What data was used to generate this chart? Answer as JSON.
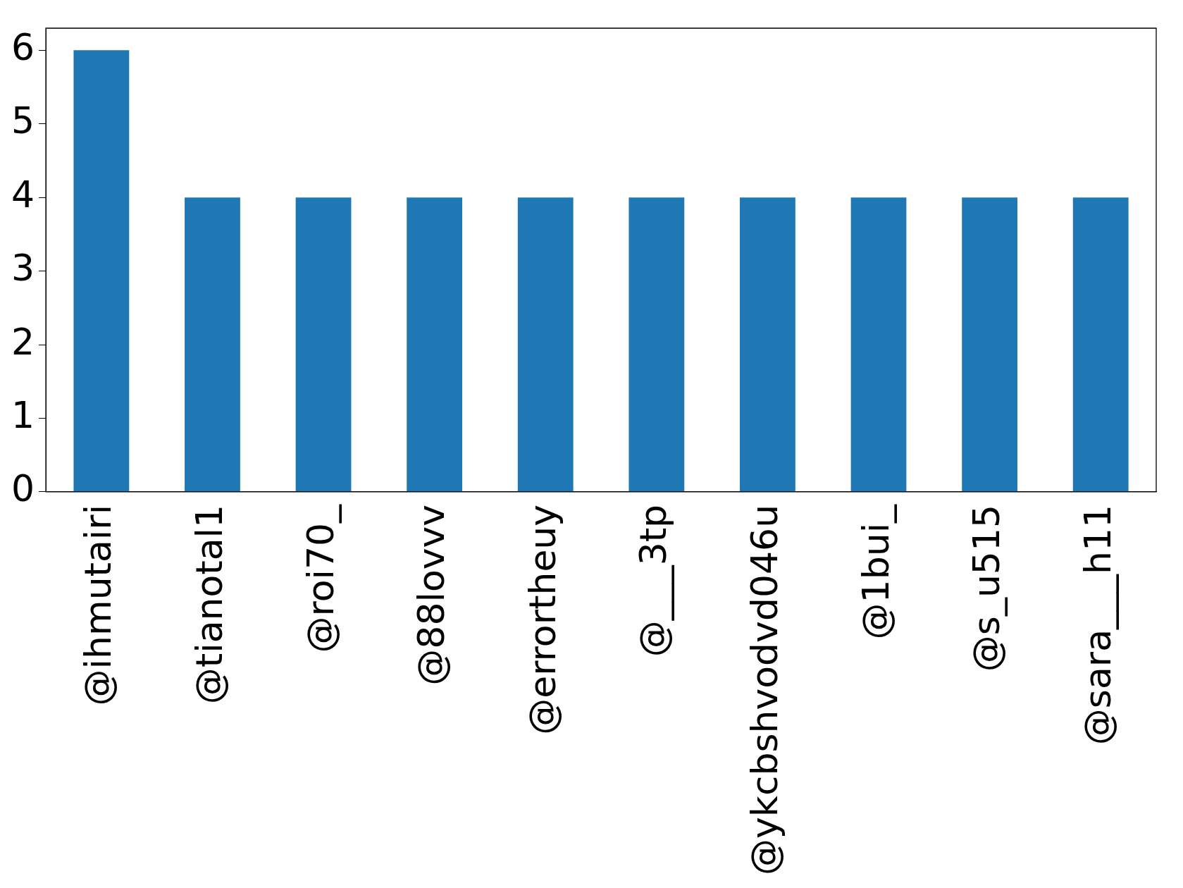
{
  "chart_data": {
    "type": "bar",
    "categories": [
      "@ihmutairi",
      "@tianotal1",
      "@roi70_",
      "@88lovvv",
      "@errortheuy",
      "@___3tp",
      "@ykcbshvodvd046u",
      "@1bui_",
      "@s_u515",
      "@sara___h11"
    ],
    "values": [
      6,
      4,
      4,
      4,
      4,
      4,
      4,
      4,
      4,
      4
    ],
    "color": "#1f77b4",
    "ylim": [
      0,
      6.3
    ],
    "yticks": [
      0,
      1,
      2,
      3,
      4,
      5,
      6
    ],
    "grid": false,
    "legend": false
  }
}
